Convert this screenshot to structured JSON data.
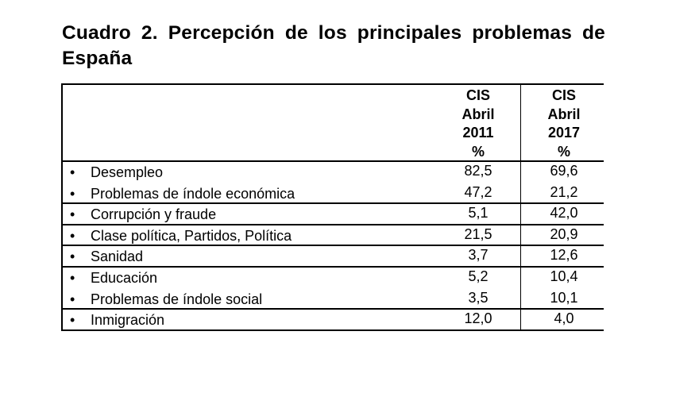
{
  "title": "Cuadro 2. Percepción de los principales problemas de España",
  "columns": [
    {
      "line1": "CIS",
      "line2": "Abril",
      "line3": "2011",
      "line4": "%"
    },
    {
      "line1": "CIS",
      "line2": "Abril",
      "line3": "2017",
      "line4": "%"
    }
  ],
  "rows": [
    {
      "label": "Desempleo",
      "v2011": "82,5",
      "v2017": "69,6"
    },
    {
      "label": "Problemas de índole económica",
      "v2011": "47,2",
      "v2017": "21,2"
    },
    {
      "label": "Corrupción y fraude",
      "v2011": "5,1",
      "v2017": "42,0"
    },
    {
      "label": "Clase política, Partidos, Política",
      "v2011": "21,5",
      "v2017": "20,9"
    },
    {
      "label": "Sanidad",
      "v2011": "3,7",
      "v2017": "12,6"
    },
    {
      "label": "Educación",
      "v2011": "5,2",
      "v2017": "10,4"
    },
    {
      "label": "Problemas de índole social",
      "v2011": "3,5",
      "v2017": "10,1"
    },
    {
      "label": "Inmigración",
      "v2011": "12,0",
      "v2017": "4,0"
    }
  ],
  "bullet": "•"
}
